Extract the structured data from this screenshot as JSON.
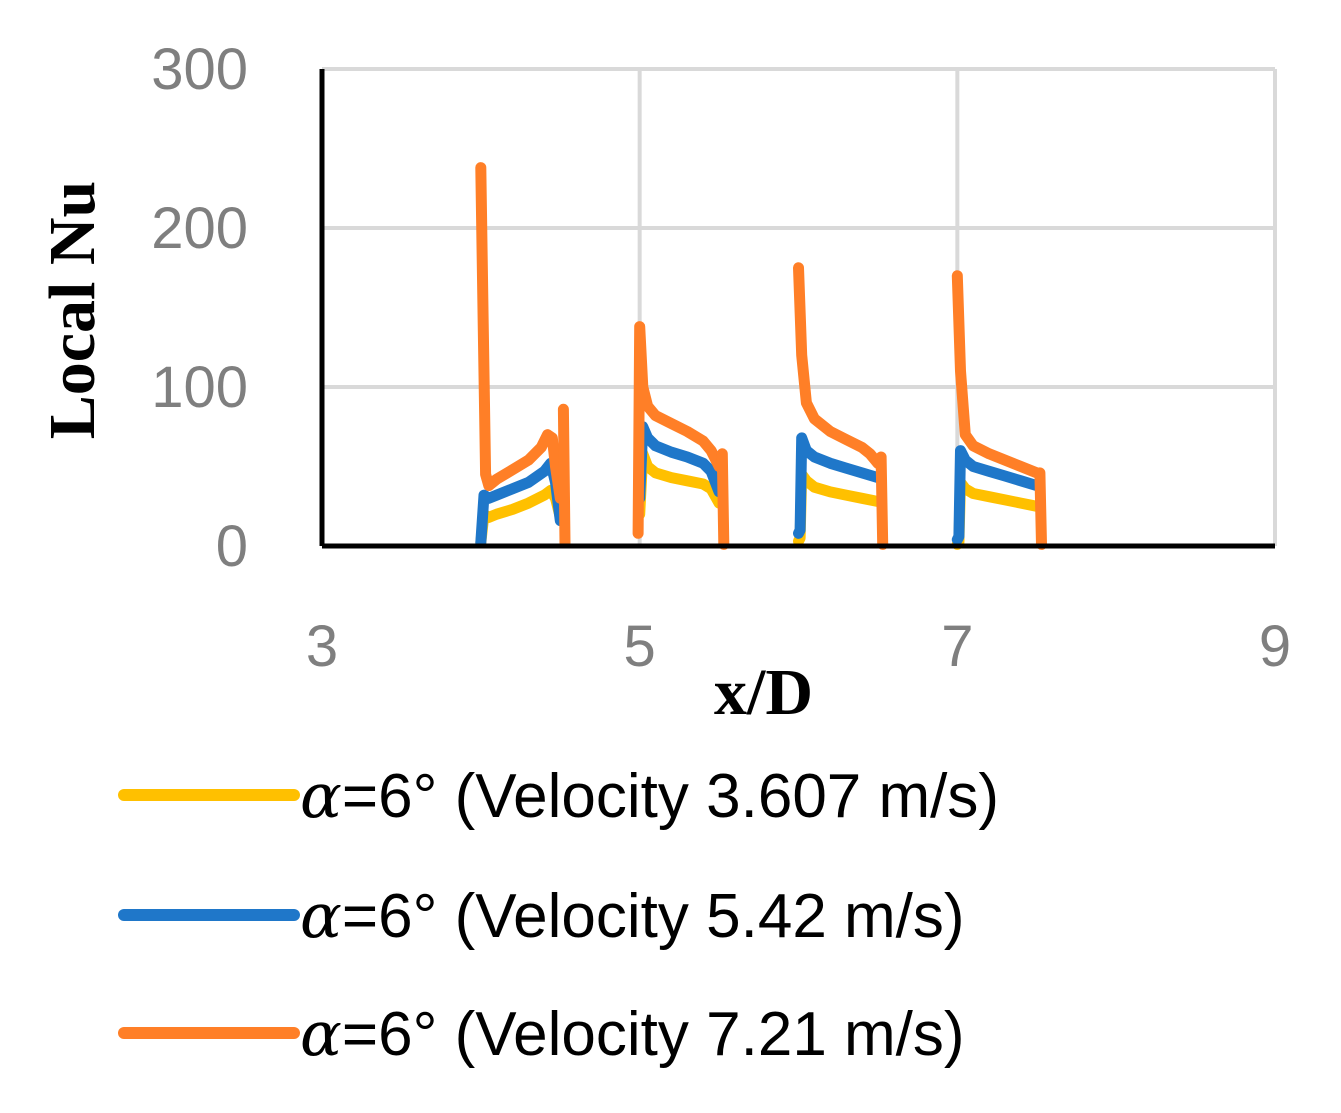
{
  "chart_data": {
    "type": "line",
    "title": "",
    "xlabel": "x/D",
    "ylabel": "Local Nu",
    "xlim": [
      3,
      9
    ],
    "ylim": [
      0,
      300
    ],
    "xticks": [
      3,
      5,
      7,
      9
    ],
    "yticks": [
      0,
      100,
      200,
      300
    ],
    "grid": true,
    "legend_position": "bottom",
    "series": [
      {
        "name": "=6° (Velocity 3.607 m/s)",
        "color": "#FFC000",
        "segments": [
          [
            [
              4.0,
              2
            ],
            [
              4.02,
              20
            ],
            [
              4.05,
              18
            ],
            [
              4.1,
              20
            ],
            [
              4.2,
              23
            ],
            [
              4.3,
              27
            ],
            [
              4.4,
              32
            ],
            [
              4.44,
              35
            ],
            [
              4.47,
              30
            ],
            [
              4.5,
              18
            ]
          ],
          [
            [
              5.0,
              20
            ],
            [
              5.02,
              58
            ],
            [
              5.05,
              50
            ],
            [
              5.1,
              46
            ],
            [
              5.2,
              43
            ],
            [
              5.3,
              41
            ],
            [
              5.4,
              39
            ],
            [
              5.45,
              36
            ],
            [
              5.5,
              27
            ]
          ],
          [
            [
              6.0,
              3
            ],
            [
              6.01,
              5
            ],
            [
              6.02,
              45
            ],
            [
              6.05,
              41
            ],
            [
              6.1,
              37
            ],
            [
              6.2,
              34
            ],
            [
              6.3,
              32
            ],
            [
              6.4,
              30
            ],
            [
              6.5,
              28
            ]
          ],
          [
            [
              7.0,
              1
            ],
            [
              7.01,
              2
            ],
            [
              7.02,
              40
            ],
            [
              7.05,
              36
            ],
            [
              7.1,
              33
            ],
            [
              7.2,
              31
            ],
            [
              7.3,
              29
            ],
            [
              7.4,
              27
            ],
            [
              7.5,
              25
            ]
          ]
        ]
      },
      {
        "name": "=6° (Velocity 5.42 m/s)",
        "color": "#1F77C9",
        "segments": [
          [
            [
              4.0,
              2
            ],
            [
              4.02,
              32
            ],
            [
              4.05,
              30
            ],
            [
              4.1,
              32
            ],
            [
              4.2,
              36
            ],
            [
              4.3,
              40
            ],
            [
              4.4,
              47
            ],
            [
              4.44,
              52
            ],
            [
              4.47,
              40
            ],
            [
              4.5,
              16
            ]
          ],
          [
            [
              5.0,
              30
            ],
            [
              5.02,
              75
            ],
            [
              5.05,
              68
            ],
            [
              5.1,
              63
            ],
            [
              5.2,
              59
            ],
            [
              5.3,
              56
            ],
            [
              5.4,
              52
            ],
            [
              5.45,
              47
            ],
            [
              5.5,
              34
            ]
          ],
          [
            [
              6.0,
              8
            ],
            [
              6.01,
              10
            ],
            [
              6.02,
              68
            ],
            [
              6.05,
              60
            ],
            [
              6.1,
              56
            ],
            [
              6.2,
              52
            ],
            [
              6.3,
              49
            ],
            [
              6.4,
              46
            ],
            [
              6.5,
              43
            ]
          ],
          [
            [
              7.0,
              4
            ],
            [
              7.01,
              6
            ],
            [
              7.02,
              60
            ],
            [
              7.05,
              54
            ],
            [
              7.1,
              50
            ],
            [
              7.2,
              47
            ],
            [
              7.3,
              44
            ],
            [
              7.4,
              41
            ],
            [
              7.5,
              38
            ]
          ]
        ]
      },
      {
        "name": "=6° (Velocity 7.21 m/s)",
        "color": "#FF7F27",
        "segments": [
          [
            [
              4.0,
              238
            ],
            [
              4.015,
              140
            ],
            [
              4.03,
              45
            ],
            [
              4.05,
              38
            ],
            [
              4.1,
              42
            ],
            [
              4.2,
              48
            ],
            [
              4.3,
              54
            ],
            [
              4.38,
              62
            ],
            [
              4.42,
              70
            ],
            [
              4.45,
              68
            ],
            [
              4.47,
              50
            ],
            [
              4.5,
              30
            ]
          ],
          [
            [
              4.52,
              86
            ],
            [
              4.53,
              2
            ]
          ],
          [
            [
              4.99,
              8
            ],
            [
              5.0,
              138
            ],
            [
              5.02,
              100
            ],
            [
              5.05,
              88
            ],
            [
              5.1,
              82
            ],
            [
              5.2,
              77
            ],
            [
              5.3,
              72
            ],
            [
              5.4,
              66
            ],
            [
              5.45,
              60
            ],
            [
              5.5,
              50
            ]
          ],
          [
            [
              5.52,
              58
            ],
            [
              5.53,
              1
            ]
          ],
          [
            [
              6.0,
              175
            ],
            [
              6.02,
              120
            ],
            [
              6.05,
              90
            ],
            [
              6.1,
              80
            ],
            [
              6.2,
              72
            ],
            [
              6.3,
              67
            ],
            [
              6.4,
              62
            ],
            [
              6.45,
              58
            ],
            [
              6.5,
              52
            ]
          ],
          [
            [
              6.52,
              56
            ],
            [
              6.53,
              1
            ]
          ],
          [
            [
              7.0,
              170
            ],
            [
              7.02,
              110
            ],
            [
              7.05,
              70
            ],
            [
              7.1,
              63
            ],
            [
              7.2,
              58
            ],
            [
              7.3,
              54
            ],
            [
              7.4,
              50
            ],
            [
              7.5,
              46
            ]
          ],
          [
            [
              7.52,
              46
            ],
            [
              7.53,
              1
            ]
          ]
        ]
      }
    ],
    "legend_prefix_symbol": "α"
  }
}
